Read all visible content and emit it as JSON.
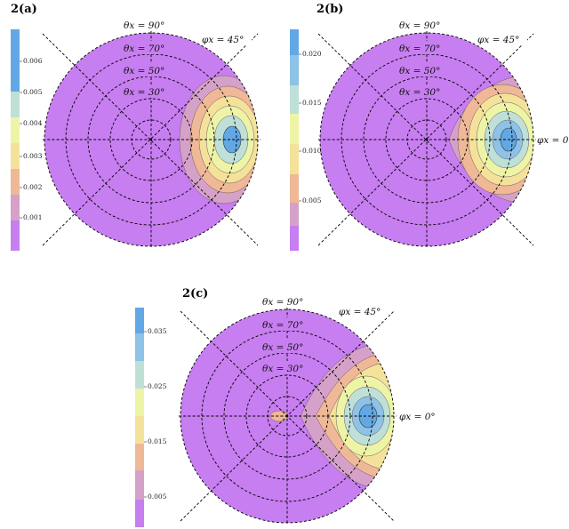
{
  "chart_data": [
    {
      "type": "polar-contour",
      "panel_label": "2(a)",
      "colorbar": {
        "ticks": [
          0.001,
          0.002,
          0.003,
          0.004,
          0.005,
          0.006
        ],
        "tick_labels": [
          "0.001",
          "0.002",
          "0.003",
          "0.004",
          "0.005",
          "0.006"
        ],
        "range": [
          0,
          0.007
        ],
        "colors": [
          "#c77ef0",
          "#d6a1c8",
          "#efb896",
          "#f5e29a",
          "#eef4a6",
          "#bfe0d7",
          "#62a8e4"
        ]
      },
      "peak_value": 0.0068,
      "peak_position": {
        "theta_x_deg": 90,
        "phi_x_deg": 0
      },
      "ring_labels": [
        "θx = 90°",
        "θx = 70°",
        "θx = 50°",
        "θx = 30°"
      ],
      "spoke_labels": [
        "φx = 45°"
      ],
      "rings_deg": [
        30,
        50,
        70,
        90
      ]
    },
    {
      "type": "polar-contour",
      "panel_label": "2(b)",
      "colorbar": {
        "ticks": [
          0.005,
          0.01,
          0.015,
          0.02
        ],
        "tick_labels": [
          "0.005",
          "0.010",
          "0.015",
          "0.020"
        ],
        "range": [
          0,
          0.024
        ],
        "colors": [
          "#c77ef0",
          "#d6a1c8",
          "#efb896",
          "#f5e29a",
          "#eef4a6",
          "#bfe0d7",
          "#8ec2e6",
          "#62a8e4"
        ]
      },
      "peak_value": 0.023,
      "peak_position": {
        "theta_x_deg": 90,
        "phi_x_deg": 0
      },
      "ring_labels": [
        "θx = 90°",
        "θx = 70°",
        "θx = 50°",
        "θx = 30°"
      ],
      "spoke_labels": [
        "φx = 45°",
        "φx = 0"
      ],
      "rings_deg": [
        30,
        50,
        70,
        90
      ]
    },
    {
      "type": "polar-contour",
      "panel_label": "2(c)",
      "colorbar": {
        "ticks": [
          0.005,
          0.015,
          0.025,
          0.035
        ],
        "tick_labels": [
          "0.005",
          "0.015",
          "0.025",
          "0.035"
        ],
        "range": [
          0,
          0.04
        ],
        "colors": [
          "#c77ef0",
          "#d6a1c8",
          "#efb896",
          "#f5e29a",
          "#eef4a6",
          "#bfe0d7",
          "#8ec2e6",
          "#62a8e4"
        ]
      },
      "peak_value": 0.039,
      "peak_position": {
        "theta_x_deg": 90,
        "phi_x_deg": 0
      },
      "ring_labels": [
        "θx = 90°",
        "θx = 70°",
        "θx = 50°",
        "θx = 30°"
      ],
      "spoke_labels": [
        "φx = 45°",
        "φx = 0°"
      ],
      "rings_deg": [
        30,
        50,
        70,
        90
      ]
    }
  ]
}
